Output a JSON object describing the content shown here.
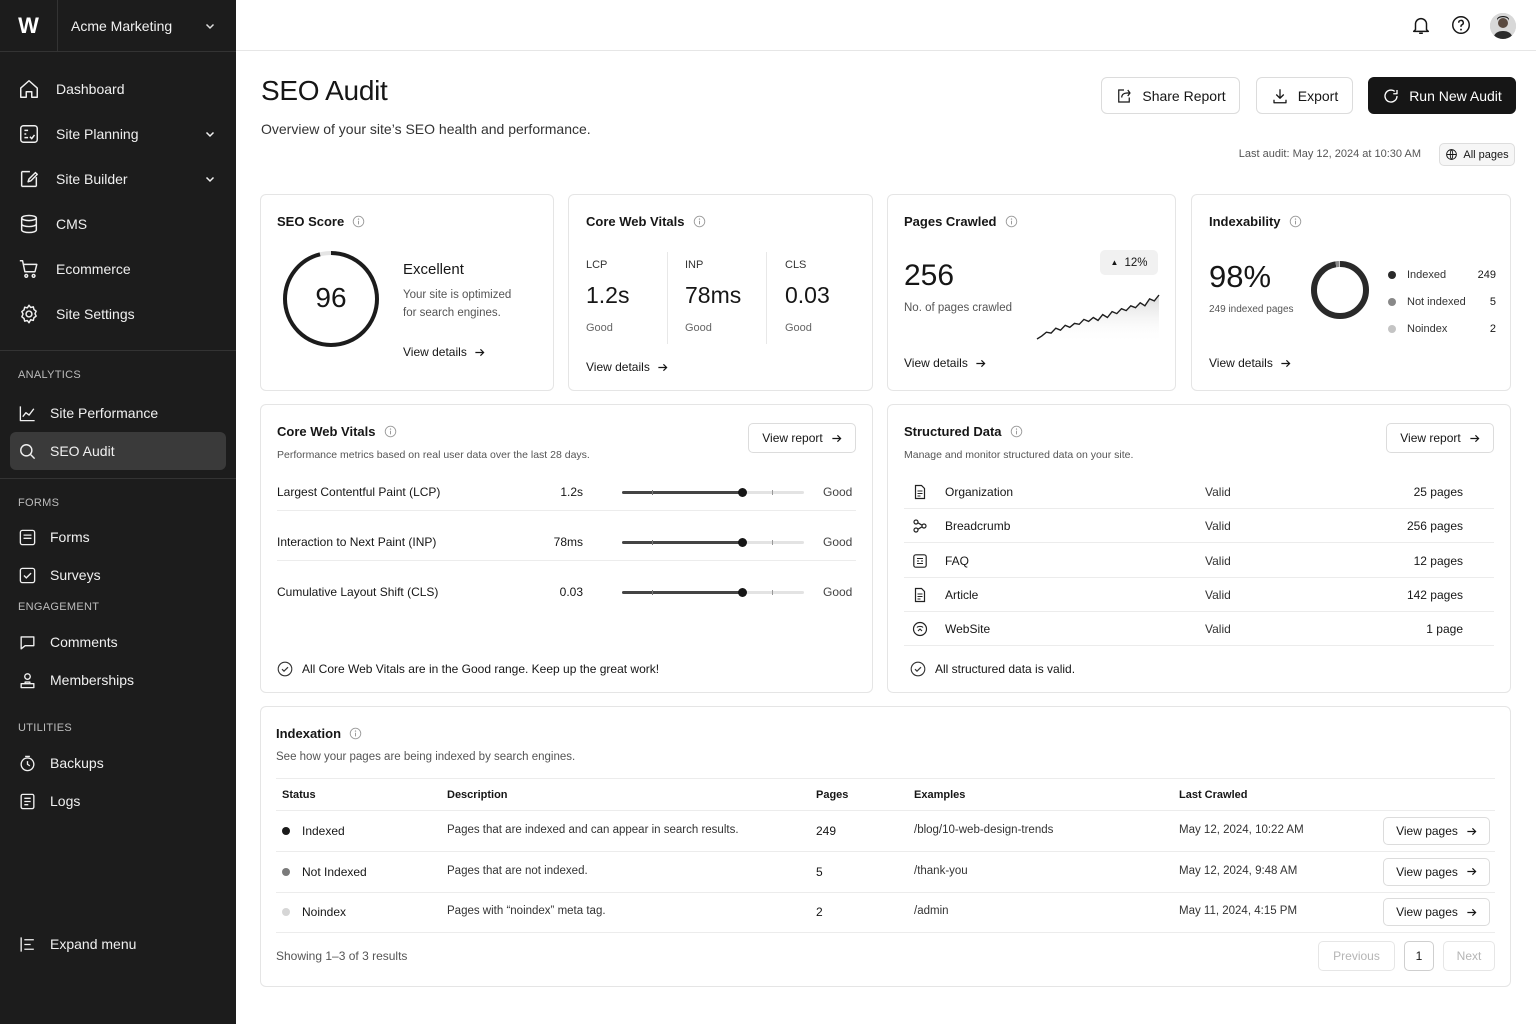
{
  "workspace": {
    "logo": "W",
    "name": "Acme Marketing"
  },
  "nav": {
    "main": [
      {
        "label": "Dashboard",
        "icon": "home-icon"
      },
      {
        "label": "Site Planning",
        "icon": "planning-icon",
        "expandable": true
      },
      {
        "label": "Site Builder",
        "icon": "edit-icon",
        "expandable": true
      },
      {
        "label": "CMS",
        "icon": "database-icon"
      },
      {
        "label": "Ecommerce",
        "icon": "cart-icon"
      },
      {
        "label": "Site Settings",
        "icon": "gear-icon"
      }
    ],
    "analytics_title": "ANALYTICS",
    "analytics": [
      {
        "label": "Site Performance",
        "icon": "chart-line-icon"
      },
      {
        "label": "SEO Audit",
        "icon": "search-icon",
        "active": true
      }
    ],
    "forms_title": "FORMS",
    "forms": [
      {
        "label": "Forms",
        "icon": "form-icon"
      },
      {
        "label": "Surveys",
        "icon": "survey-icon"
      }
    ],
    "engagement_title": "ENGAGEMENT",
    "engagement": [
      {
        "label": "Comments",
        "icon": "comment-icon"
      },
      {
        "label": "Memberships",
        "icon": "members-icon"
      }
    ],
    "utilities_title": "UTILITIES",
    "utilities": [
      {
        "label": "Backups",
        "icon": "backup-icon"
      },
      {
        "label": "Logs",
        "icon": "logs-icon"
      }
    ],
    "expand_label": "Expand menu"
  },
  "header": {
    "title": "SEO Audit",
    "subtitle": "Overview of your site’s SEO health and performance.",
    "share_label": "Share Report",
    "export_label": "Export",
    "run_label": "Run New Audit",
    "last_audit": "Last audit: May 12, 2024 at 10:30 AM",
    "scope": "All pages"
  },
  "seo_score": {
    "title": "SEO Score",
    "score": "96",
    "score_fraction": 0.96,
    "rating": "Excellent",
    "desc_line1": "Your site is optimized",
    "desc_line2": "for search engines.",
    "link": "View details"
  },
  "cwv_summary": {
    "title": "Core Web Vitals",
    "metrics": [
      {
        "label": "LCP",
        "value": "1.2s",
        "status": "Good"
      },
      {
        "label": "INP",
        "value": "78ms",
        "status": "Good"
      },
      {
        "label": "CLS",
        "value": "0.03",
        "status": "Good"
      }
    ],
    "link": "View details"
  },
  "pages_crawled": {
    "title": "Pages Crawled",
    "value": "256",
    "label": "No. of pages crawled",
    "change": "12%",
    "link": "View details",
    "sparkline": [
      2,
      5,
      9,
      8,
      13,
      11,
      16,
      14,
      18,
      17,
      22,
      20,
      24,
      21,
      27,
      24,
      30,
      28,
      33,
      31,
      36,
      34,
      39,
      36,
      43,
      41,
      47
    ]
  },
  "indexability": {
    "title": "Indexability",
    "value": "98%",
    "sub": "249 indexed pages",
    "legend": [
      {
        "label": "Indexed",
        "count": "249",
        "value": 249,
        "color": "#2a2a2a"
      },
      {
        "label": "Not indexed",
        "count": "5",
        "value": 5,
        "color": "#888888"
      },
      {
        "label": "Noindex",
        "count": "2",
        "value": 2,
        "color": "#c4c4c4"
      }
    ],
    "link": "View details"
  },
  "cwv_detail": {
    "title": "Core Web Vitals",
    "subtitle": "Performance metrics based on real user data over the last 28 days.",
    "button": "View report",
    "rows": [
      {
        "name": "Largest Contentful Paint (LCP)",
        "value": "1.2s",
        "status": "Good",
        "position": 0.66
      },
      {
        "name": "Interaction to Next Paint (INP)",
        "value": "78ms",
        "status": "Good",
        "position": 0.66
      },
      {
        "name": "Cumulative Layout Shift (CLS)",
        "value": "0.03",
        "status": "Good",
        "position": 0.66
      }
    ],
    "footer": "All Core Web Vitals are in the Good range. Keep up the great work!"
  },
  "structured_data": {
    "title": "Structured Data",
    "subtitle": "Manage and monitor structured data on your site.",
    "button": "View report",
    "rows": [
      {
        "type": "Organization",
        "status": "Valid",
        "pages": "25 pages",
        "icon": "document-icon"
      },
      {
        "type": "Breadcrumb",
        "status": "Valid",
        "pages": "256 pages",
        "icon": "breadcrumb-icon"
      },
      {
        "type": "FAQ",
        "status": "Valid",
        "pages": "12 pages",
        "icon": "faq-icon"
      },
      {
        "type": "Article",
        "status": "Valid",
        "pages": "142 pages",
        "icon": "article-icon"
      },
      {
        "type": "WebSite",
        "status": "Valid",
        "pages": "1 page",
        "icon": "website-icon"
      }
    ],
    "footer": "All structured data is valid."
  },
  "indexation": {
    "title": "Indexation",
    "subtitle": "See how your pages are being indexed by search engines.",
    "columns": [
      "Status",
      "Description",
      "Pages",
      "Examples",
      "Last Crawled"
    ],
    "rows": [
      {
        "status": "Indexed",
        "color": "#1a1a1a",
        "description": "Pages that are indexed and can appear in search results.",
        "pages": "249",
        "example": "/blog/10-web-design-trends",
        "last": "May 12, 2024, 10:22 AM",
        "action": "View pages"
      },
      {
        "status": "Not Indexed",
        "color": "#7a7a7a",
        "description": "Pages that are not indexed.",
        "pages": "5",
        "example": "/thank-you",
        "last": "May 12, 2024, 9:48 AM",
        "action": "View pages"
      },
      {
        "status": "Noindex",
        "color": "#d6d6d6",
        "description": "Pages with “noindex” meta tag.",
        "pages": "2",
        "example": "/admin",
        "last": "May 11, 2024, 4:15 PM",
        "action": "View pages"
      }
    ],
    "showing": "Showing 1–3 of 3 results",
    "pagination": {
      "prev": "Previous",
      "page": "1",
      "next": "Next"
    }
  }
}
